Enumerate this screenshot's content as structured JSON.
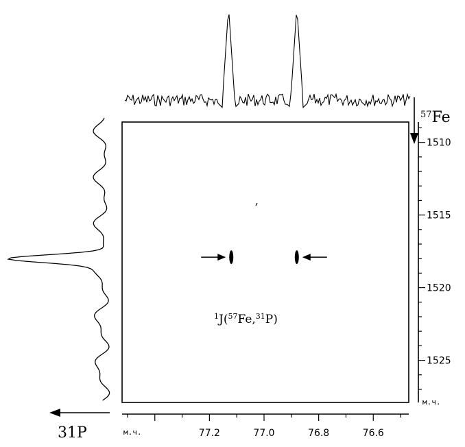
{
  "chart_data": {
    "type": "heatmap",
    "title": "",
    "x_axis": {
      "label": "31P",
      "unit": "м.ч.",
      "range": [
        77.52,
        76.47
      ],
      "ticks": [
        77.6,
        77.4,
        77.2,
        77.0,
        76.8,
        76.6
      ],
      "tick_labels": [
        "77.2",
        "77.0",
        "76.8",
        "76.6"
      ],
      "minor_step": 0.1,
      "direction": "reversed"
    },
    "y_axis": {
      "label": "57Fe",
      "unit": "м.ч.",
      "range": [
        1508.6,
        1527.9
      ],
      "ticks": [
        1510,
        1515,
        1520,
        1525
      ],
      "tick_labels": [
        "1510",
        "1515",
        "1520",
        "1525"
      ],
      "minor_step": 1,
      "direction": "downward"
    },
    "cross_peaks": [
      {
        "x": 77.12,
        "y": 1517.9,
        "arrow": "left"
      },
      {
        "x": 76.88,
        "y": 1517.9,
        "arrow": "right"
      }
    ],
    "top_projection_peaks": [
      77.13,
      76.88
    ],
    "side_projection_peak": 1518.0,
    "annotation": {
      "base": "J(",
      "sup1": "1",
      "sup2": "57",
      "sup3": "31",
      "nuc1": "Fe,",
      "nuc2": "P)"
    },
    "grid": false
  }
}
